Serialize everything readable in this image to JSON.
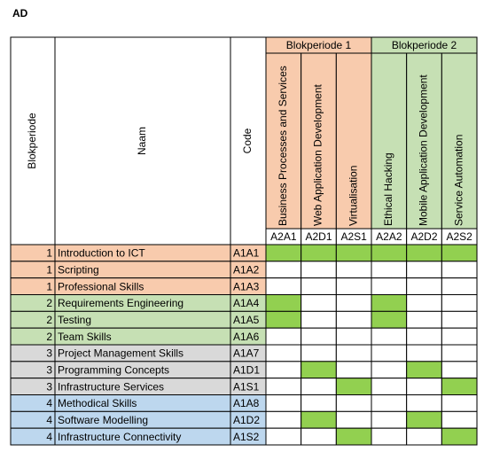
{
  "title": "AD",
  "table": {
    "row_headers": [
      "Blokperiode",
      "Naam",
      "Code"
    ],
    "mark_color": "#92d050",
    "groups": [
      {
        "label": "Blokperiode 1",
        "color": "#f8cbad",
        "courses": [
          {
            "name": "Business Processes and Services",
            "code": "A2A1"
          },
          {
            "name": "Web Application Development",
            "code": "A2D1"
          },
          {
            "name": "Virtualisation",
            "code": "A2S1"
          }
        ]
      },
      {
        "label": "Blokperiode 2",
        "color": "#c6e0b4",
        "courses": [
          {
            "name": "Ethical Hacking",
            "code": "A2A2"
          },
          {
            "name": "Mobile Application Development",
            "code": "A2D2"
          },
          {
            "name": "Service Automation",
            "code": "A2S2"
          }
        ]
      }
    ],
    "rows": [
      {
        "period": 1,
        "name": "Introduction to ICT",
        "code": "A1A1",
        "color": "#f8cbad",
        "marks": [
          true,
          true,
          true,
          true,
          true,
          true
        ]
      },
      {
        "period": 1,
        "name": "Scripting",
        "code": "A1A2",
        "color": "#f8cbad",
        "marks": [
          false,
          false,
          false,
          false,
          false,
          false
        ]
      },
      {
        "period": 1,
        "name": "Professional Skills",
        "code": "A1A3",
        "color": "#f8cbad",
        "marks": [
          false,
          false,
          false,
          false,
          false,
          false
        ]
      },
      {
        "period": 2,
        "name": "Requirements Engineering",
        "code": "A1A4",
        "color": "#c6e0b4",
        "marks": [
          true,
          false,
          false,
          true,
          false,
          false
        ]
      },
      {
        "period": 2,
        "name": "Testing",
        "code": "A1A5",
        "color": "#c6e0b4",
        "marks": [
          true,
          false,
          false,
          true,
          false,
          false
        ]
      },
      {
        "period": 2,
        "name": "Team Skills",
        "code": "A1A6",
        "color": "#c6e0b4",
        "marks": [
          false,
          false,
          false,
          false,
          false,
          false
        ]
      },
      {
        "period": 3,
        "name": "Project Management Skills",
        "code": "A1A7",
        "color": "#d9d9d9",
        "marks": [
          false,
          false,
          false,
          false,
          false,
          false
        ]
      },
      {
        "period": 3,
        "name": "Programming Concepts",
        "code": "A1D1",
        "color": "#d9d9d9",
        "marks": [
          false,
          true,
          false,
          false,
          true,
          false
        ]
      },
      {
        "period": 3,
        "name": "Infrastructure Services",
        "code": "A1S1",
        "color": "#d9d9d9",
        "marks": [
          false,
          false,
          true,
          false,
          false,
          true
        ]
      },
      {
        "period": 4,
        "name": "Methodical Skills",
        "code": "A1A8",
        "color": "#bdd7ee",
        "marks": [
          false,
          false,
          false,
          false,
          false,
          false
        ]
      },
      {
        "period": 4,
        "name": "Software Modelling",
        "code": "A1D2",
        "color": "#bdd7ee",
        "marks": [
          false,
          true,
          false,
          false,
          true,
          false
        ]
      },
      {
        "period": 4,
        "name": "Infrastructure Connectivity",
        "code": "A1S2",
        "color": "#bdd7ee",
        "marks": [
          false,
          false,
          true,
          false,
          false,
          true
        ]
      }
    ]
  }
}
